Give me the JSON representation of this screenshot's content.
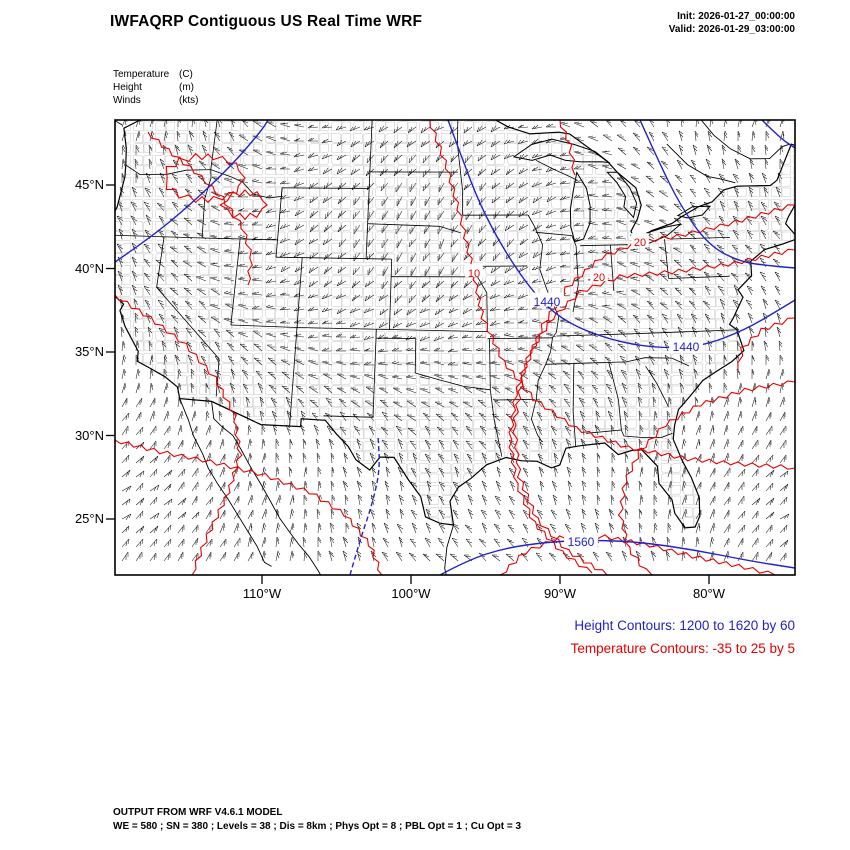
{
  "header": {
    "title": "IWFAQRP Contiguous US Real Time WRF",
    "init": "Init: 2026-01-27_00:00:00",
    "valid": "Valid: 2026-01-29_03:00:00"
  },
  "legend": [
    {
      "label": "Temperature",
      "unit": "(C)"
    },
    {
      "label": "Height",
      "unit": "(m)"
    },
    {
      "label": "Winds",
      "unit": "(kts)"
    }
  ],
  "axes": {
    "lat_labels": [
      "45°N",
      "40°N",
      "35°N",
      "30°N",
      "25°N"
    ],
    "lon_labels": [
      "110°W",
      "100°W",
      "90°W",
      "80°W"
    ]
  },
  "contour_labels": [
    {
      "text": "20",
      "type": "temperature"
    },
    {
      "text": "10",
      "type": "temperature"
    },
    {
      "text": "20",
      "type": "temperature"
    },
    {
      "text": "1440",
      "type": "height"
    },
    {
      "text": "1440",
      "type": "height"
    },
    {
      "text": "1560",
      "type": "height"
    }
  ],
  "contour_info": {
    "height": "Height Contours: 1200 to 1620 by 60",
    "temperature": "Temperature Contours: -35 to 25 by 5"
  },
  "footer": [
    "OUTPUT FROM WRF V4.6.1 MODEL",
    "WE = 580 ; SN = 380 ; Levels = 38 ; Dis = 8km ; Phys Opt = 8 ; PBL Opt = 1 ; Cu Opt = 3"
  ],
  "colors": {
    "temperature_contour": "#e60000",
    "height_contour": "#2222cc",
    "map_outline": "#000000",
    "county_lines": "#777777"
  }
}
